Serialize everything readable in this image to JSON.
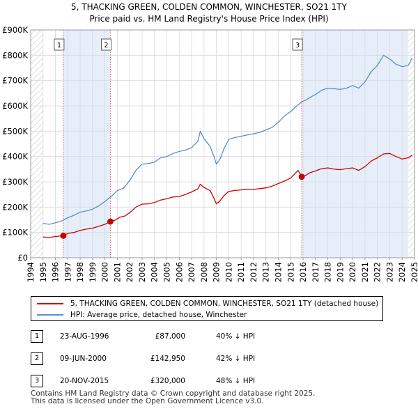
{
  "chart_data": {
    "type": "line",
    "title": "5, THACKING GREEN, COLDEN COMMON, WINCHESTER, SO21 1TY",
    "subtitle": "Price paid vs. HM Land Registry's House Price Index (HPI)",
    "xlabel": "",
    "ylabel": "",
    "xlim": [
      1994,
      2025
    ],
    "ylim": [
      0,
      900000
    ],
    "x_ticks": [
      "1994",
      "1995",
      "1996",
      "1997",
      "1998",
      "1999",
      "2000",
      "2001",
      "2002",
      "2003",
      "2004",
      "2005",
      "2006",
      "2007",
      "2008",
      "2009",
      "2010",
      "2011",
      "2012",
      "2013",
      "2014",
      "2015",
      "2016",
      "2017",
      "2018",
      "2019",
      "2020",
      "2021",
      "2022",
      "2023",
      "2024",
      "2025"
    ],
    "y_ticks": [
      {
        "value": 0,
        "label": "£0"
      },
      {
        "value": 100000,
        "label": "£100K"
      },
      {
        "value": 200000,
        "label": "£200K"
      },
      {
        "value": 300000,
        "label": "£300K"
      },
      {
        "value": 400000,
        "label": "£400K"
      },
      {
        "value": 500000,
        "label": "£500K"
      },
      {
        "value": 600000,
        "label": "£600K"
      },
      {
        "value": 700000,
        "label": "£700K"
      },
      {
        "value": 800000,
        "label": "£800K"
      },
      {
        "value": 900000,
        "label": "£900K"
      }
    ],
    "hatched_regions": [
      [
        1994,
        1995
      ],
      [
        2024.5,
        2025
      ]
    ],
    "shaded_spans": [
      [
        1996.64,
        2000.44
      ],
      [
        2015.89,
        2024.5
      ]
    ],
    "series": [
      {
        "name": "5, THACKING GREEN, COLDEN COMMON, WINCHESTER, SO21 1TY (detached house)",
        "color": "#cc0000",
        "x": [
          1995.0,
          1995.5,
          1996.0,
          1996.64,
          1997.0,
          1997.5,
          1998.0,
          1998.5,
          1999.0,
          1999.5,
          2000.0,
          2000.44,
          2000.8,
          2001.2,
          2001.6,
          2002.0,
          2002.5,
          2003.0,
          2003.5,
          2004.0,
          2004.5,
          2005.0,
          2005.5,
          2006.0,
          2006.5,
          2007.0,
          2007.5,
          2007.7,
          2008.0,
          2008.5,
          2008.8,
          2009.0,
          2009.3,
          2009.6,
          2010.0,
          2010.5,
          2011.0,
          2011.5,
          2012.0,
          2012.5,
          2013.0,
          2013.5,
          2014.0,
          2014.5,
          2015.0,
          2015.6,
          2015.89,
          2016.2,
          2016.5,
          2017.0,
          2017.5,
          2018.0,
          2018.5,
          2019.0,
          2019.5,
          2020.0,
          2020.5,
          2021.0,
          2021.5,
          2022.0,
          2022.5,
          2023.0,
          2023.5,
          2024.0,
          2024.5,
          2024.8
        ],
        "values": [
          82000,
          80000,
          84000,
          87000,
          96000,
          100000,
          108000,
          113000,
          117000,
          124000,
          132000,
          142950,
          148000,
          160000,
          165000,
          178000,
          200000,
          212000,
          213000,
          218000,
          228000,
          233000,
          240000,
          242000,
          250000,
          260000,
          272000,
          290000,
          278000,
          265000,
          235000,
          213000,
          225000,
          245000,
          262000,
          266000,
          268000,
          271000,
          270000,
          273000,
          276000,
          283000,
          293000,
          303000,
          315000,
          345000,
          320000,
          325000,
          335000,
          343000,
          352000,
          355000,
          350000,
          348000,
          352000,
          355000,
          345000,
          360000,
          382000,
          395000,
          410000,
          412000,
          400000,
          390000,
          395000,
          405000
        ]
      },
      {
        "name": "HPI: Average price, detached house, Winchester",
        "color": "#5b8ccf",
        "x": [
          1995.0,
          1995.5,
          1996.0,
          1996.5,
          1997.0,
          1997.5,
          1998.0,
          1998.5,
          1999.0,
          1999.5,
          2000.0,
          2000.5,
          2001.0,
          2001.5,
          2002.0,
          2002.5,
          2003.0,
          2003.5,
          2004.0,
          2004.5,
          2005.0,
          2005.5,
          2006.0,
          2006.5,
          2007.0,
          2007.5,
          2007.7,
          2008.0,
          2008.5,
          2008.8,
          2009.0,
          2009.3,
          2009.6,
          2010.0,
          2010.5,
          2011.0,
          2011.5,
          2012.0,
          2012.5,
          2013.0,
          2013.5,
          2014.0,
          2014.5,
          2015.0,
          2015.5,
          2015.89,
          2016.2,
          2016.5,
          2017.0,
          2017.5,
          2018.0,
          2018.5,
          2019.0,
          2019.5,
          2020.0,
          2020.5,
          2021.0,
          2021.5,
          2022.0,
          2022.5,
          2023.0,
          2023.5,
          2024.0,
          2024.5,
          2024.8
        ],
        "values": [
          136000,
          132000,
          138000,
          145000,
          158000,
          168000,
          180000,
          185000,
          192000,
          205000,
          222000,
          242000,
          265000,
          275000,
          305000,
          345000,
          370000,
          372000,
          378000,
          395000,
          400000,
          412000,
          420000,
          425000,
          435000,
          460000,
          500000,
          470000,
          440000,
          400000,
          370000,
          390000,
          430000,
          468000,
          475000,
          480000,
          485000,
          490000,
          495000,
          505000,
          515000,
          535000,
          560000,
          578000,
          600000,
          616000,
          622000,
          632000,
          645000,
          662000,
          670000,
          668000,
          665000,
          670000,
          680000,
          670000,
          695000,
          735000,
          760000,
          800000,
          785000,
          765000,
          755000,
          760000,
          790000
        ]
      }
    ],
    "sales": [
      {
        "id": "1",
        "x": 1996.64,
        "value": 87000
      },
      {
        "id": "2",
        "x": 2000.44,
        "value": 142950
      },
      {
        "id": "3",
        "x": 2015.89,
        "value": 320000
      }
    ]
  },
  "legend": {
    "property_label": "5, THACKING GREEN, COLDEN COMMON, WINCHESTER, SO21 1TY (detached house)",
    "hpi_label": "HPI: Average price, detached house, Winchester"
  },
  "sales_table": [
    {
      "marker": "1",
      "date": "23-AUG-1996",
      "price": "£87,000",
      "hpi": "40% ↓ HPI"
    },
    {
      "marker": "2",
      "date": "09-JUN-2000",
      "price": "£142,950",
      "hpi": "42% ↓ HPI"
    },
    {
      "marker": "3",
      "date": "20-NOV-2015",
      "price": "£320,000",
      "hpi": "48% ↓ HPI"
    }
  ],
  "footer": {
    "line1": "Contains HM Land Registry data © Crown copyright and database right 2025.",
    "line2": "This data is licensed under the Open Government Licence v3.0."
  }
}
